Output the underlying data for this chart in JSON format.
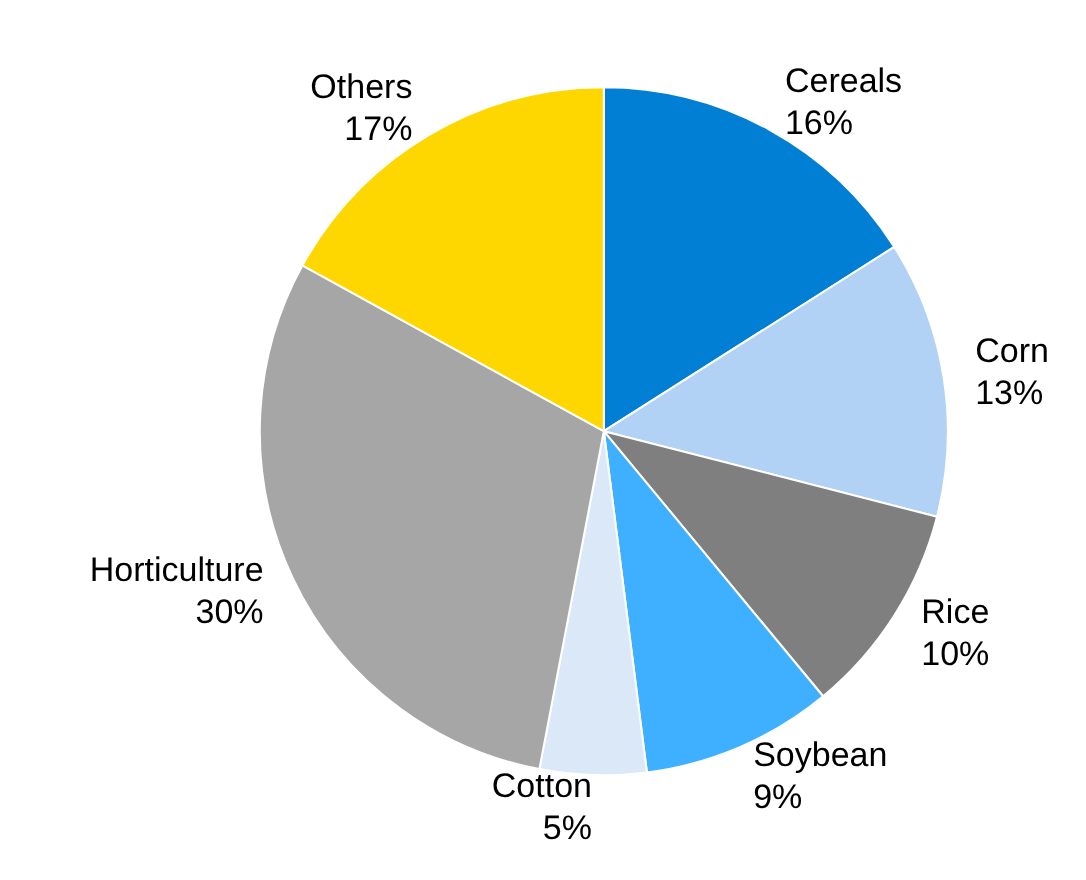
{
  "chart_data": {
    "type": "pie",
    "categories": [
      "Cereals",
      "Corn",
      "Rice",
      "Soybean",
      "Cotton",
      "Horticulture",
      "Others"
    ],
    "values": [
      16,
      13,
      10,
      9,
      5,
      30,
      17
    ],
    "value_labels": [
      "16%",
      "13%",
      "10%",
      "9%",
      "5%",
      "30%",
      "17%"
    ],
    "colors": [
      "#007fd4",
      "#b1d1f5",
      "#7f7f7f",
      "#3fb0ff",
      "#dbe8f8",
      "#a6a6a6",
      "#ffd700"
    ]
  }
}
